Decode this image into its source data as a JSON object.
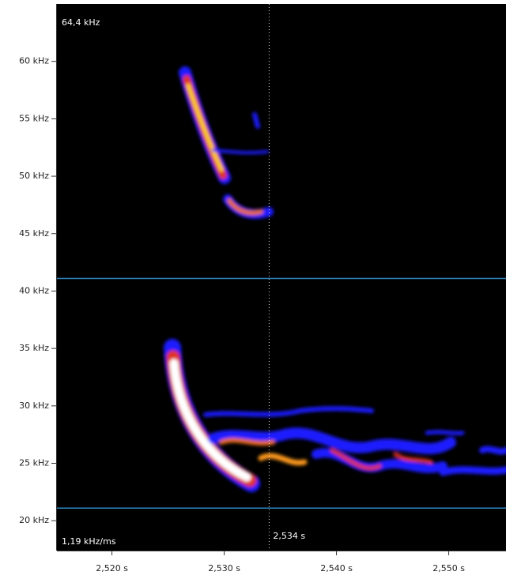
{
  "chart_data": {
    "type": "spectrogram",
    "annotations": {
      "top_frequency": "64,4 kHz",
      "slope": "1,19 kHz/ms"
    },
    "cursor": {
      "value": 2.534,
      "label": "2,534 s"
    },
    "band_lines": [
      41.1,
      21.1
    ],
    "band_line_color": "#2e86c1",
    "xlim": [
      2.5151,
      2.5551
    ],
    "ylim": [
      17.4,
      65
    ],
    "xticks": [
      {
        "value": 2.52,
        "label": "2,520 s"
      },
      {
        "value": 2.53,
        "label": "2,530 s"
      },
      {
        "value": 2.54,
        "label": "2,540 s"
      },
      {
        "value": 2.55,
        "label": "2,550 s"
      }
    ],
    "yticks": [
      {
        "value": 20,
        "label": "20 kHz"
      },
      {
        "value": 25,
        "label": "25 kHz"
      },
      {
        "value": 30,
        "label": "30 kHz"
      },
      {
        "value": 35,
        "label": "35 kHz"
      },
      {
        "value": 40,
        "label": "40 kHz"
      },
      {
        "value": 45,
        "label": "45 kHz"
      },
      {
        "value": 50,
        "label": "50 kHz"
      },
      {
        "value": 55,
        "label": "55 kHz"
      },
      {
        "value": 60,
        "label": "60 kHz"
      }
    ]
  }
}
